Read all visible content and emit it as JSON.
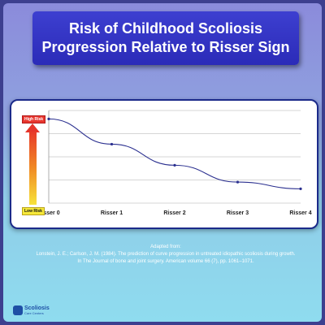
{
  "title": {
    "line1": "Risk of Childhood Scoliosis",
    "line2": "Progression Relative to Risser Sign"
  },
  "scale": {
    "high_label": "High Risk",
    "low_label": "Low Risk"
  },
  "chart_data": {
    "type": "line",
    "categories": [
      "Risser 0",
      "Risser 1",
      "Risser 2",
      "Risser 3",
      "Risser 4"
    ],
    "values": [
      100,
      70,
      45,
      25,
      17
    ],
    "ylim": [
      0,
      110
    ],
    "grid": true,
    "line_color": "#2a2f8f"
  },
  "source": {
    "line1": "Adapted from:",
    "line2": "Lonstein, J. E.; Carlson, J. M. (1984). The prediction of curve progression in untreated idiopathic scoliosis during growth.",
    "line3": "In The Journal of bone and joint surgery. American volume 66 (7), pp. 1061–1071."
  },
  "logo": {
    "line1": "Scoliosis",
    "line2": "Care Centers"
  },
  "colors": {
    "title_bg": "#2b2bb8",
    "high_risk": "#e8362e",
    "low_risk": "#f6e83a"
  }
}
